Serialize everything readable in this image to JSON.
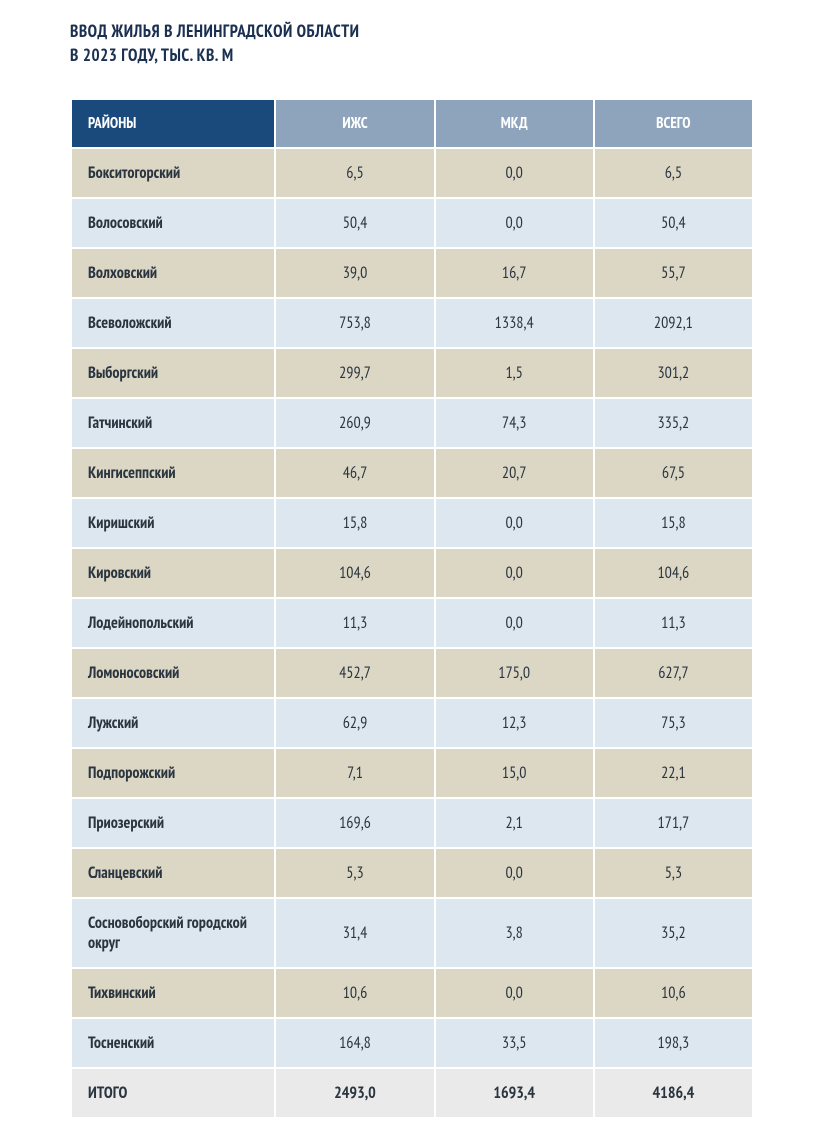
{
  "title_line1": "ВВОД ЖИЛЬЯ В ЛЕНИНГРАДСКОЙ ОБЛАСТИ",
  "title_line2": "В 2023 ГОДУ, ТЫС. КВ. М",
  "table": {
    "type": "table",
    "header_bg_first": "#1a4a7c",
    "header_bg_other": "#8ea3bc",
    "row_bg_odd": "#dcd6c4",
    "row_bg_even": "#dce7ef",
    "footer_bg": "#eaeaea",
    "text_color": "#2a3540",
    "header_text_color": "#ffffff",
    "columns": [
      "РАЙОНЫ",
      "ИЖС",
      "МКД",
      "ВСЕГО"
    ],
    "rows": [
      [
        "Бокситогорский",
        "6,5",
        "0,0",
        "6,5"
      ],
      [
        "Волосовский",
        "50,4",
        "0,0",
        "50,4"
      ],
      [
        "Волховский",
        "39,0",
        "16,7",
        "55,7"
      ],
      [
        "Всеволожский",
        "753,8",
        "1338,4",
        "2092,1"
      ],
      [
        "Выборгский",
        "299,7",
        "1,5",
        "301,2"
      ],
      [
        "Гатчинский",
        "260,9",
        "74,3",
        "335,2"
      ],
      [
        "Кингисеппский",
        "46,7",
        "20,7",
        "67,5"
      ],
      [
        "Киришский",
        "15,8",
        "0,0",
        "15,8"
      ],
      [
        "Кировский",
        "104,6",
        "0,0",
        "104,6"
      ],
      [
        "Лодейнопольский",
        "11,3",
        "0,0",
        "11,3"
      ],
      [
        "Ломоносовский",
        "452,7",
        "175,0",
        "627,7"
      ],
      [
        "Лужский",
        "62,9",
        "12,3",
        "75,3"
      ],
      [
        "Подпорожский",
        "7,1",
        "15,0",
        "22,1"
      ],
      [
        "Приозерский",
        "169,6",
        "2,1",
        "171,7"
      ],
      [
        "Сланцевский",
        "5,3",
        "0,0",
        "5,3"
      ],
      [
        "Сосновоборский городской округ",
        "31,4",
        "3,8",
        "35,2"
      ],
      [
        "Тихвинский",
        "10,6",
        "0,0",
        "10,6"
      ],
      [
        "Тосненский",
        "164,8",
        "33,5",
        "198,3"
      ]
    ],
    "footer": [
      "ИТОГО",
      "2493,0",
      "1693,4",
      "4186,4"
    ]
  }
}
